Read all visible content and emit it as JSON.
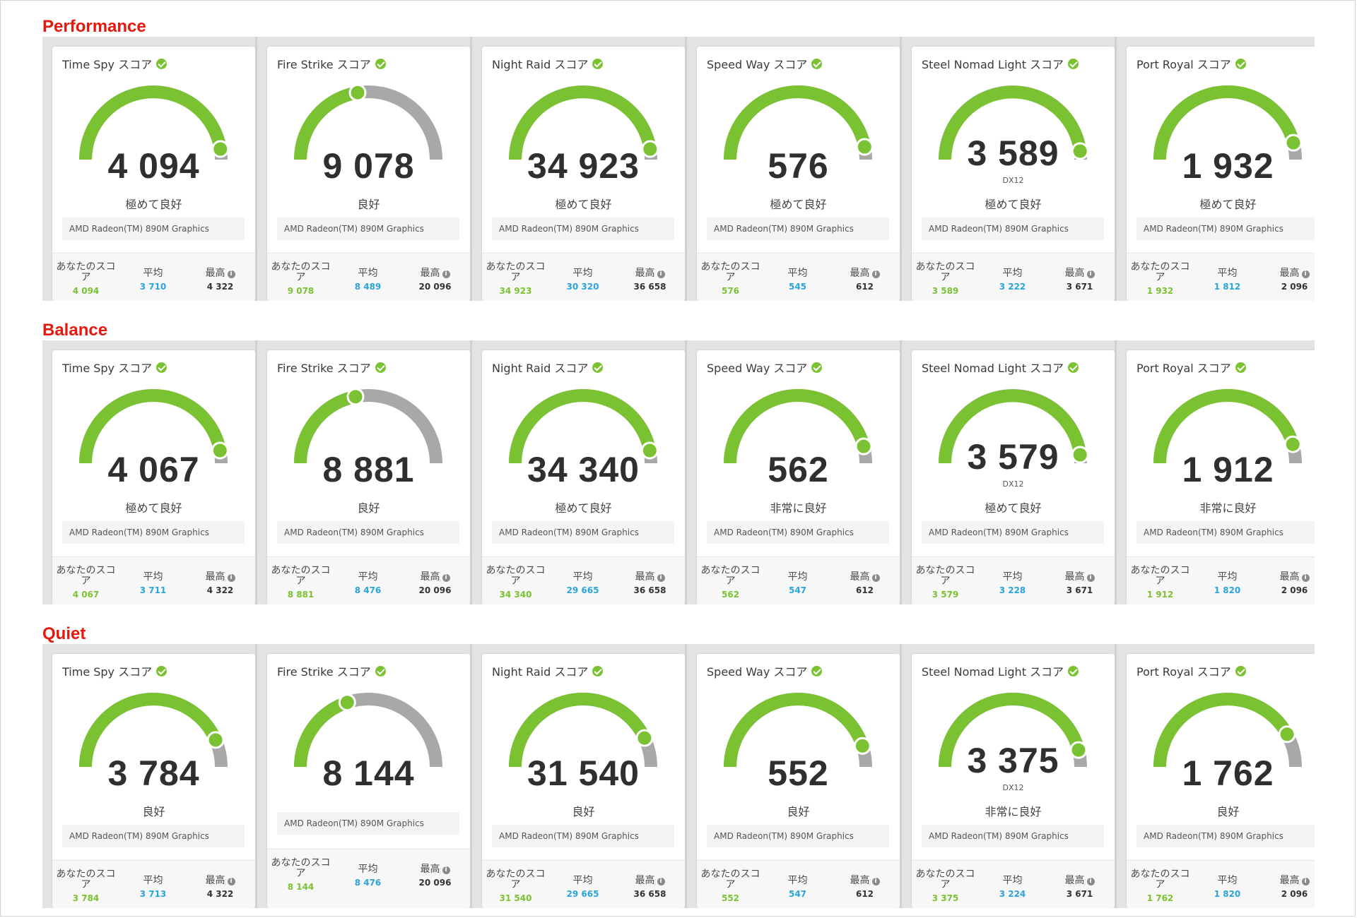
{
  "labels": {
    "you": "あなたのスコア",
    "avg": "平均",
    "max": "最高",
    "info": "i",
    "dx": "DX12"
  },
  "colors": {
    "green": "#7ac231",
    "gray": "#a8a8a8",
    "blue": "#29a4dc",
    "title_red": "#e8170d"
  },
  "sections": [
    {
      "title": "Performance",
      "cards": [
        {
          "name": "Time Spy スコア",
          "score": "4 094",
          "rating": "極めて良好",
          "gpu": "AMD Radeon(TM) 890M Graphics",
          "you": "4 094",
          "avg": "3 710",
          "max": "4 322",
          "fraction": 0.95
        },
        {
          "name": "Fire Strike スコア",
          "score": "9 078",
          "rating": "良好",
          "gpu": "AMD Radeon(TM) 890M Graphics",
          "you": "9 078",
          "avg": "8 489",
          "max": "20 096",
          "fraction": 0.45
        },
        {
          "name": "Night Raid スコア",
          "score": "34 923",
          "rating": "極めて良好",
          "gpu": "AMD Radeon(TM) 890M Graphics",
          "you": "34 923",
          "avg": "30 320",
          "max": "36 658",
          "fraction": 0.95
        },
        {
          "name": "Speed Way スコア",
          "score": "576",
          "rating": "極めて良好",
          "gpu": "AMD Radeon(TM) 890M Graphics",
          "you": "576",
          "avg": "545",
          "max": "612",
          "fraction": 0.94
        },
        {
          "name": "Steel Nomad Light スコア",
          "score": "3 589",
          "dx": true,
          "rating": "極めて良好",
          "gpu": "AMD Radeon(TM) 890M Graphics",
          "you": "3 589",
          "avg": "3 222",
          "max": "3 671",
          "fraction": 0.96
        },
        {
          "name": "Port Royal スコア",
          "score": "1 932",
          "rating": "極めて良好",
          "gpu": "AMD Radeon(TM) 890M Graphics",
          "you": "1 932",
          "avg": "1 812",
          "max": "2 096",
          "fraction": 0.92
        }
      ]
    },
    {
      "title": "Balance",
      "cards": [
        {
          "name": "Time Spy スコア",
          "score": "4 067",
          "rating": "極めて良好",
          "gpu": "AMD Radeon(TM) 890M Graphics",
          "you": "4 067",
          "avg": "3 711",
          "max": "4 322",
          "fraction": 0.94
        },
        {
          "name": "Fire Strike スコア",
          "score": "8 881",
          "rating": "良好",
          "gpu": "AMD Radeon(TM) 890M Graphics",
          "you": "8 881",
          "avg": "8 476",
          "max": "20 096",
          "fraction": 0.44
        },
        {
          "name": "Night Raid スコア",
          "score": "34 340",
          "rating": "極めて良好",
          "gpu": "AMD Radeon(TM) 890M Graphics",
          "you": "34 340",
          "avg": "29 665",
          "max": "36 658",
          "fraction": 0.94
        },
        {
          "name": "Speed Way スコア",
          "score": "562",
          "rating": "非常に良好",
          "gpu": "AMD Radeon(TM) 890M Graphics",
          "you": "562",
          "avg": "547",
          "max": "612",
          "fraction": 0.92
        },
        {
          "name": "Steel Nomad Light スコア",
          "score": "3 579",
          "dx": true,
          "rating": "極めて良好",
          "gpu": "AMD Radeon(TM) 890M Graphics",
          "you": "3 579",
          "avg": "3 228",
          "max": "3 671",
          "fraction": 0.96
        },
        {
          "name": "Port Royal スコア",
          "score": "1 912",
          "rating": "非常に良好",
          "gpu": "AMD Radeon(TM) 890M Graphics",
          "you": "1 912",
          "avg": "1 820",
          "max": "2 096",
          "fraction": 0.91
        }
      ]
    },
    {
      "title": "Quiet",
      "cards": [
        {
          "name": "Time Spy スコア",
          "score": "3 784",
          "rating": "良好",
          "gpu": "AMD Radeon(TM) 890M Graphics",
          "you": "3 784",
          "avg": "3 713",
          "max": "4 322",
          "fraction": 0.87
        },
        {
          "name": "Fire Strike スコア",
          "score": "8 144",
          "rating": "",
          "gpu": "AMD Radeon(TM) 890M Graphics",
          "you": "8 144",
          "avg": "8 476",
          "max": "20 096",
          "fraction": 0.4,
          "alt": true
        },
        {
          "name": "Night Raid スコア",
          "score": "31 540",
          "rating": "良好",
          "gpu": "AMD Radeon(TM) 890M Graphics",
          "you": "31 540",
          "avg": "29 665",
          "max": "36 658",
          "fraction": 0.86
        },
        {
          "name": "Speed Way スコア",
          "score": "552",
          "rating": "良好",
          "gpu": "AMD Radeon(TM) 890M Graphics",
          "you": "552",
          "avg": "547",
          "max": "612",
          "fraction": 0.9
        },
        {
          "name": "Steel Nomad Light スコア",
          "score": "3 375",
          "dx": true,
          "rating": "非常に良好",
          "gpu": "AMD Radeon(TM) 890M Graphics",
          "you": "3 375",
          "avg": "3 224",
          "max": "3 671",
          "fraction": 0.92
        },
        {
          "name": "Port Royal スコア",
          "score": "1 762",
          "rating": "良好",
          "gpu": "AMD Radeon(TM) 890M Graphics",
          "you": "1 762",
          "avg": "1 820",
          "max": "2 096",
          "fraction": 0.84
        }
      ]
    }
  ]
}
